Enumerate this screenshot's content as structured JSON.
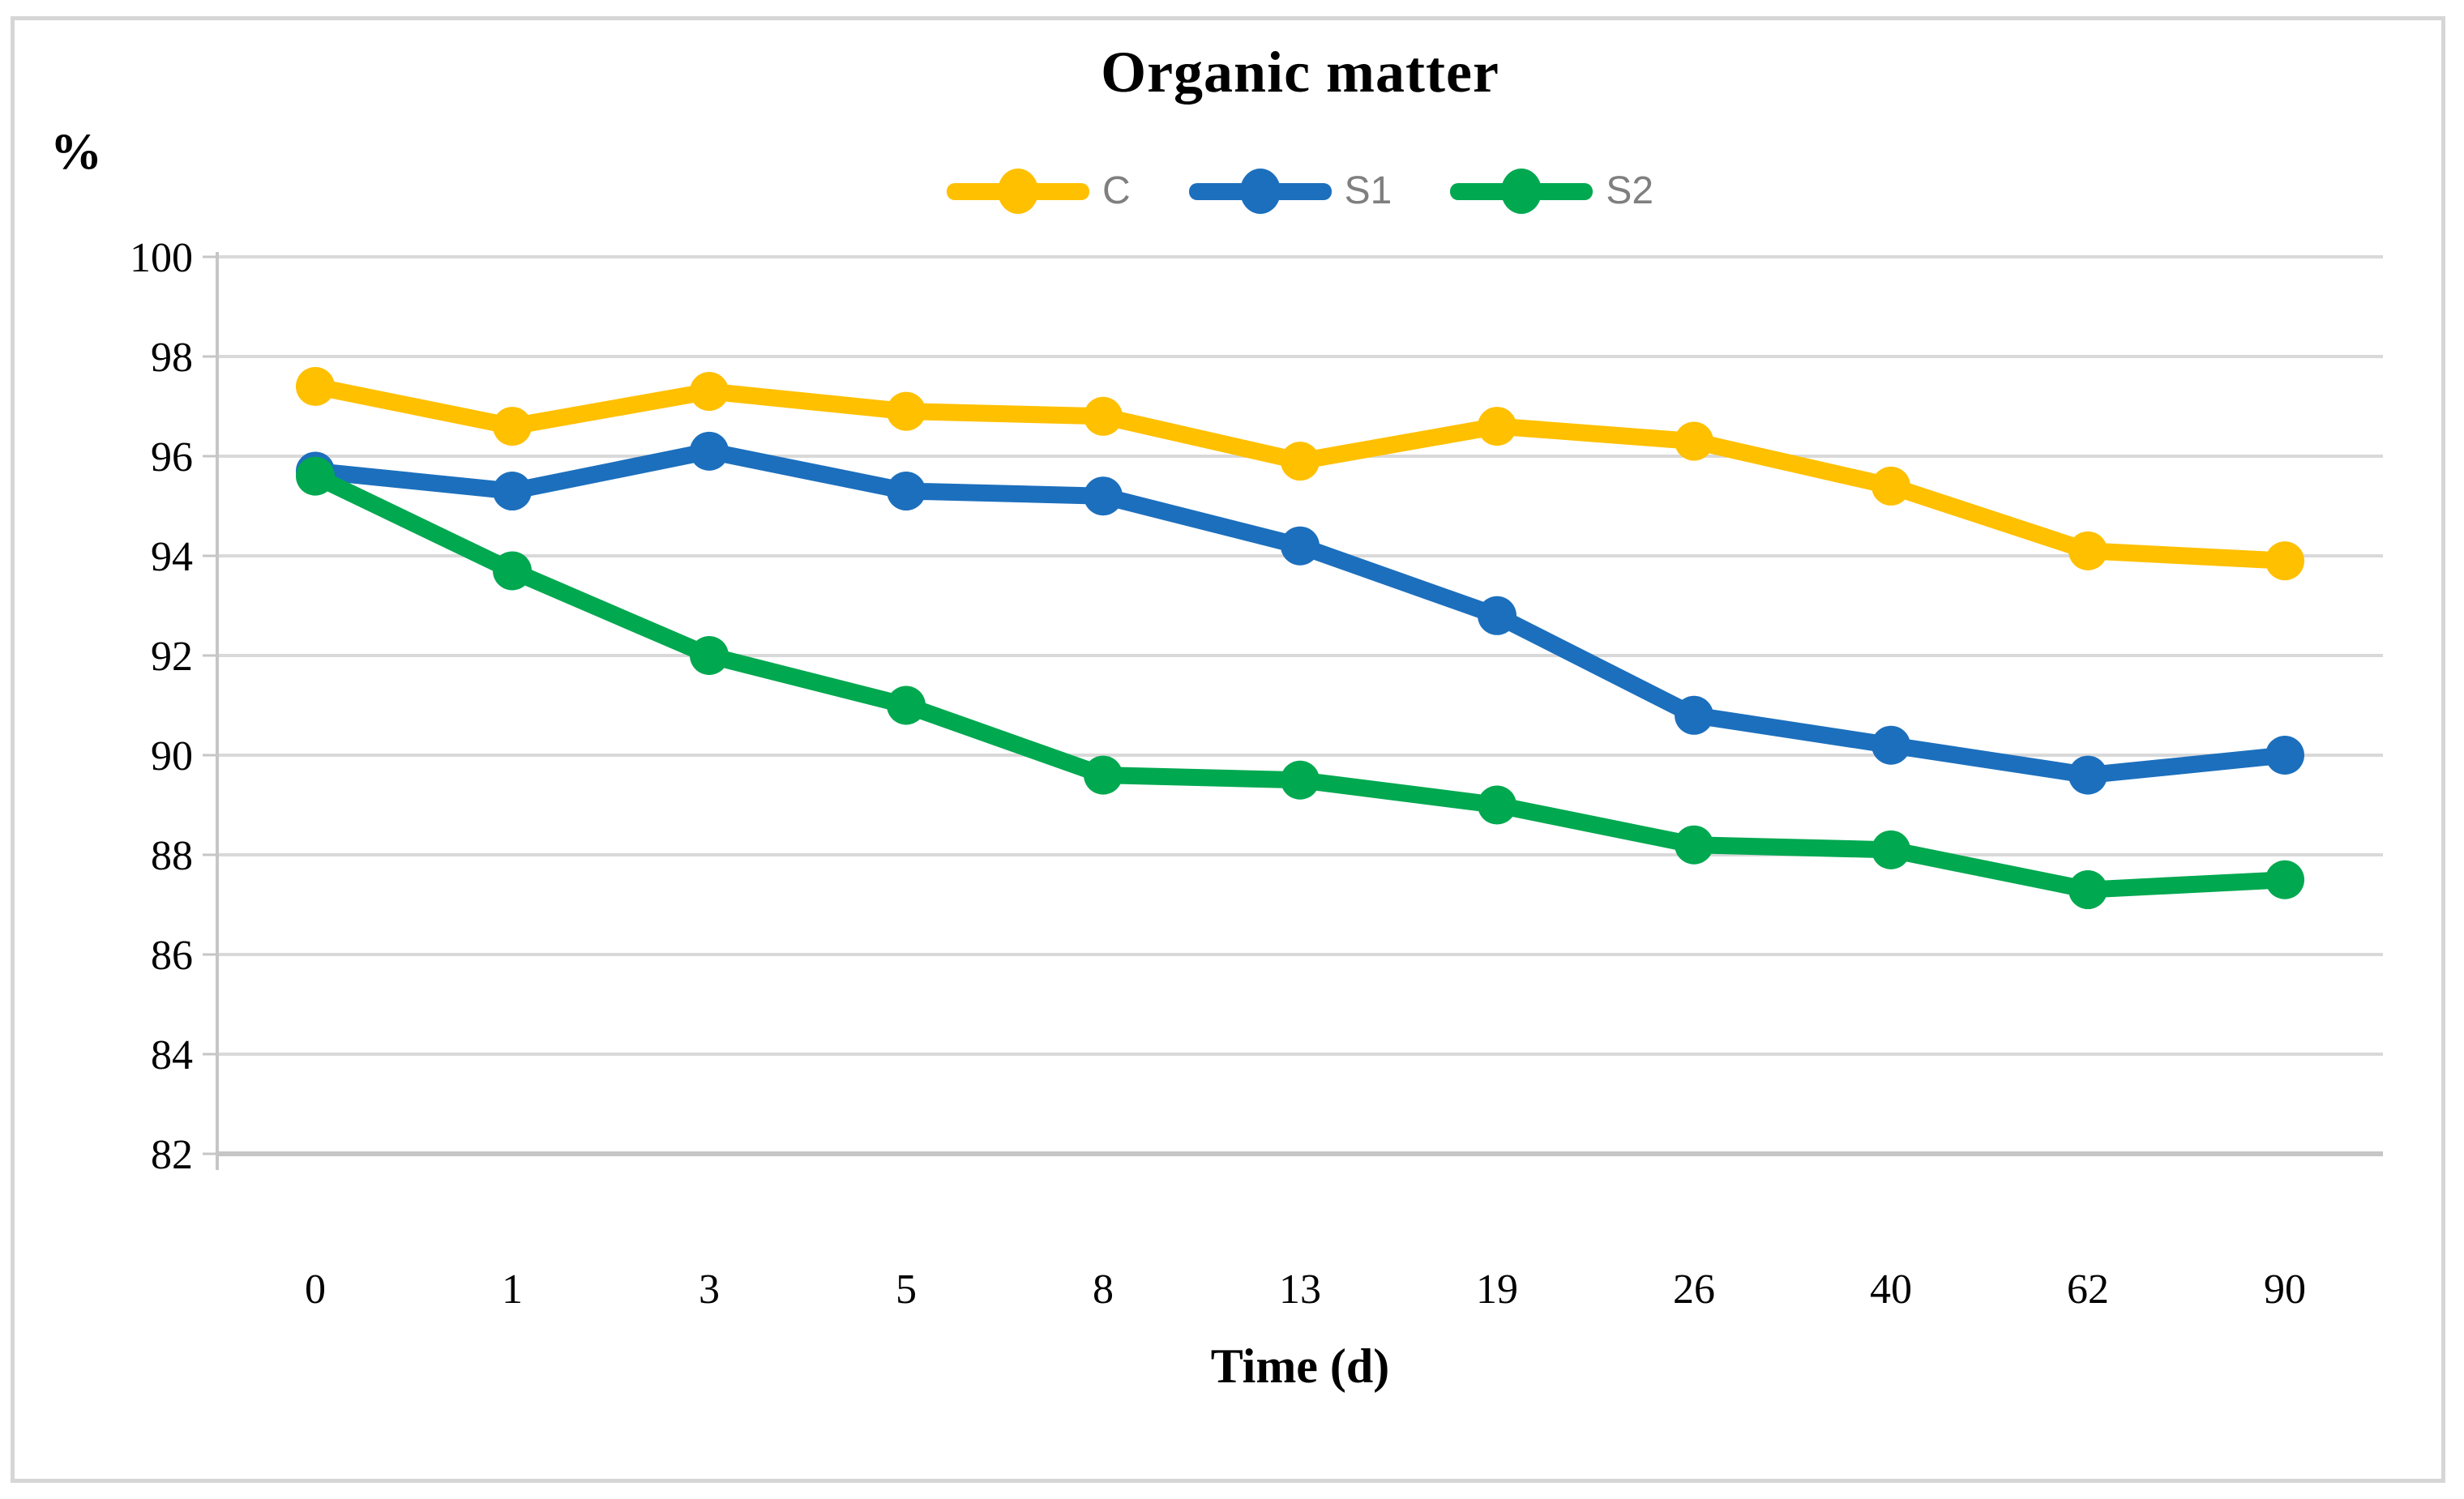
{
  "chart_data": {
    "type": "line",
    "title": "Organic matter",
    "ylabel": "%",
    "xlabel": "Time (d)",
    "categories": [
      "0",
      "1",
      "3",
      "5",
      "8",
      "13",
      "19",
      "26",
      "40",
      "62",
      "90"
    ],
    "series": [
      {
        "name": "C",
        "color": "#FFC000",
        "values": [
          97.4,
          96.6,
          97.3,
          96.9,
          96.8,
          95.9,
          96.6,
          96.3,
          95.4,
          94.1,
          93.9
        ]
      },
      {
        "name": "S1",
        "color": "#1C6FBD",
        "values": [
          95.7,
          95.3,
          96.1,
          95.3,
          95.2,
          94.2,
          92.8,
          90.8,
          90.2,
          89.6,
          90.0
        ]
      },
      {
        "name": "S2",
        "color": "#00A850",
        "values": [
          95.6,
          93.7,
          92.0,
          91.0,
          89.6,
          89.5,
          89.0,
          88.2,
          88.1,
          87.3,
          87.5
        ]
      }
    ],
    "ylim": [
      82,
      100
    ],
    "ytick_step": 2,
    "grid": "horizontal",
    "legend_position": "top",
    "legend_label_color": "#7f7f7f",
    "gridline_color": "#d9d9d9",
    "axis_line_color": "#c6c6c6",
    "border_color": "#d6d6d6",
    "tick_label_color": "#000000"
  }
}
